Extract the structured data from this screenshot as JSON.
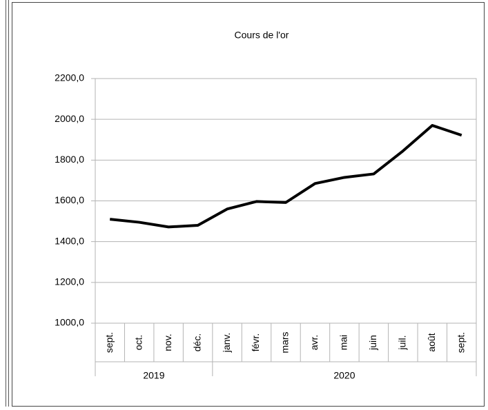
{
  "chart_data": {
    "type": "line",
    "title": "Cours de l'or",
    "categories": [
      "sept.",
      "oct.",
      "nov.",
      "déc.",
      "janv.",
      "févr.",
      "mars",
      "avr.",
      "mai",
      "juin",
      "juil.",
      "août",
      "sept."
    ],
    "x_groups": [
      {
        "label": "2019",
        "count": 4
      },
      {
        "label": "2020",
        "count": 9
      }
    ],
    "series": [
      {
        "name": "Cours de l'or",
        "color": "#000000",
        "values": [
          1510,
          1495,
          1472,
          1480,
          1560,
          1597,
          1592,
          1685,
          1715,
          1732,
          1845,
          1970,
          1922
        ]
      }
    ],
    "ylim": [
      1000,
      2200
    ],
    "yticks": [
      {
        "value": 1000,
        "label": "1000,0"
      },
      {
        "value": 1200,
        "label": "1200,0"
      },
      {
        "value": 1400,
        "label": "1400,0"
      },
      {
        "value": 1600,
        "label": "1600,0"
      },
      {
        "value": 1800,
        "label": "1800,0"
      },
      {
        "value": 2000,
        "label": "2000,0"
      },
      {
        "value": 2200,
        "label": "2200,0"
      }
    ],
    "grid": true
  }
}
